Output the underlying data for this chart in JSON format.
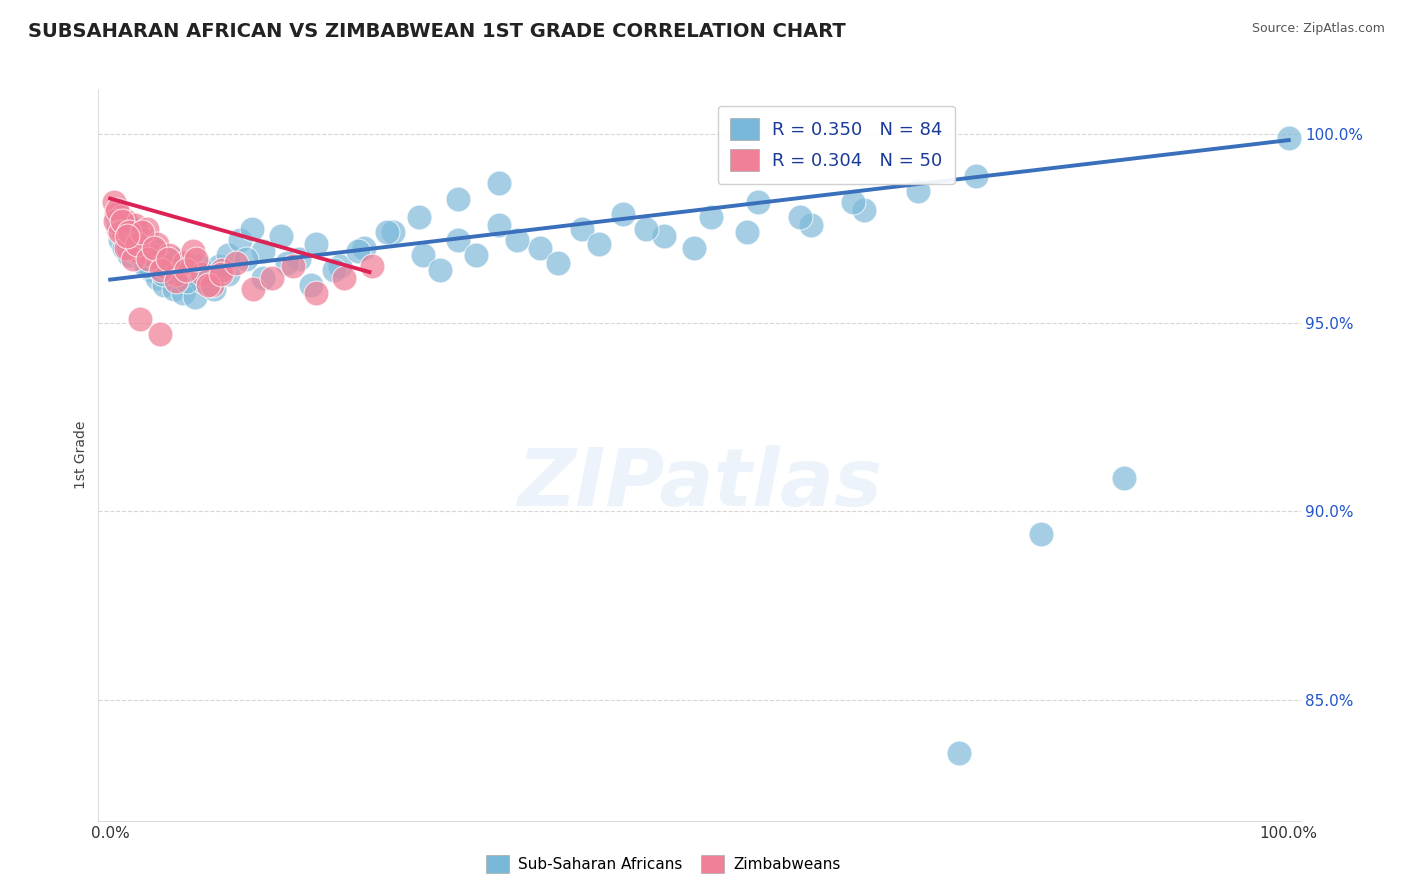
{
  "title": "SUBSAHARAN AFRICAN VS ZIMBABWEAN 1ST GRADE CORRELATION CHART",
  "source": "Source: ZipAtlas.com",
  "ylabel": "1st Grade",
  "xlim": [
    -0.01,
    1.01
  ],
  "ylim": [
    0.818,
    1.012
  ],
  "ytick_vals": [
    0.85,
    0.9,
    0.95,
    1.0
  ],
  "ytick_labels": [
    "85.0%",
    "90.0%",
    "95.0%",
    "100.0%"
  ],
  "legend_r_blue": "R = 0.350",
  "legend_n_blue": "N = 84",
  "legend_r_pink": "R = 0.304",
  "legend_n_pink": "N = 50",
  "blue_color": "#7ab8d9",
  "pink_color": "#f08098",
  "blue_line_color": "#3a6fbb",
  "pink_line_color": "#dd2255",
  "legend_text_color": "#1a3a9a",
  "title_color": "#222222",
  "source_color": "#555555",
  "blue_line_x": [
    0.0,
    1.0
  ],
  "blue_line_y": [
    0.9615,
    0.9985
  ],
  "pink_line_x": [
    0.0,
    0.22
  ],
  "pink_line_y": [
    0.983,
    0.9635
  ],
  "blue_x": [
    0.005,
    0.008,
    0.01,
    0.012,
    0.014,
    0.016,
    0.018,
    0.02,
    0.022,
    0.025,
    0.028,
    0.03,
    0.032,
    0.035,
    0.038,
    0.04,
    0.043,
    0.046,
    0.05,
    0.054,
    0.058,
    0.062,
    0.067,
    0.072,
    0.078,
    0.085,
    0.092,
    0.1,
    0.11,
    0.12,
    0.13,
    0.145,
    0.16,
    0.175,
    0.195,
    0.215,
    0.24,
    0.265,
    0.295,
    0.33,
    0.365,
    0.4,
    0.435,
    0.47,
    0.51,
    0.55,
    0.595,
    0.64,
    0.685,
    0.735,
    0.28,
    0.31,
    0.345,
    0.38,
    0.415,
    0.455,
    0.495,
    0.54,
    0.585,
    0.63,
    0.02,
    0.025,
    0.03,
    0.038,
    0.045,
    0.055,
    0.065,
    0.075,
    0.088,
    0.1,
    0.115,
    0.13,
    0.15,
    0.17,
    0.19,
    0.21,
    0.235,
    0.262,
    0.295,
    0.33,
    0.72,
    0.79,
    0.86,
    1.0
  ],
  "blue_y": [
    0.978,
    0.972,
    0.974,
    0.97,
    0.976,
    0.968,
    0.972,
    0.969,
    0.975,
    0.971,
    0.968,
    0.966,
    0.97,
    0.964,
    0.968,
    0.962,
    0.966,
    0.96,
    0.964,
    0.959,
    0.963,
    0.958,
    0.962,
    0.957,
    0.961,
    0.963,
    0.965,
    0.968,
    0.972,
    0.975,
    0.969,
    0.973,
    0.967,
    0.971,
    0.965,
    0.97,
    0.974,
    0.968,
    0.972,
    0.976,
    0.97,
    0.975,
    0.979,
    0.973,
    0.978,
    0.982,
    0.976,
    0.98,
    0.985,
    0.989,
    0.964,
    0.968,
    0.972,
    0.966,
    0.971,
    0.975,
    0.97,
    0.974,
    0.978,
    0.982,
    0.973,
    0.968,
    0.965,
    0.969,
    0.963,
    0.967,
    0.961,
    0.965,
    0.959,
    0.963,
    0.967,
    0.962,
    0.966,
    0.96,
    0.964,
    0.969,
    0.974,
    0.978,
    0.983,
    0.987,
    0.836,
    0.894,
    0.909,
    0.999
  ],
  "pink_x": [
    0.003,
    0.005,
    0.007,
    0.009,
    0.011,
    0.013,
    0.015,
    0.018,
    0.021,
    0.024,
    0.027,
    0.031,
    0.035,
    0.04,
    0.045,
    0.05,
    0.056,
    0.063,
    0.07,
    0.078,
    0.086,
    0.095,
    0.004,
    0.006,
    0.008,
    0.01,
    0.013,
    0.016,
    0.019,
    0.023,
    0.027,
    0.032,
    0.037,
    0.043,
    0.049,
    0.056,
    0.064,
    0.073,
    0.083,
    0.094,
    0.107,
    0.121,
    0.137,
    0.155,
    0.175,
    0.198,
    0.222,
    0.014,
    0.025,
    0.042
  ],
  "pink_y": [
    0.982,
    0.979,
    0.975,
    0.978,
    0.974,
    0.977,
    0.97,
    0.973,
    0.976,
    0.969,
    0.972,
    0.975,
    0.968,
    0.971,
    0.965,
    0.968,
    0.963,
    0.966,
    0.969,
    0.963,
    0.96,
    0.964,
    0.977,
    0.98,
    0.974,
    0.977,
    0.97,
    0.974,
    0.967,
    0.971,
    0.974,
    0.967,
    0.97,
    0.964,
    0.967,
    0.961,
    0.964,
    0.967,
    0.96,
    0.963,
    0.966,
    0.959,
    0.962,
    0.965,
    0.958,
    0.962,
    0.965,
    0.973,
    0.951,
    0.947
  ]
}
